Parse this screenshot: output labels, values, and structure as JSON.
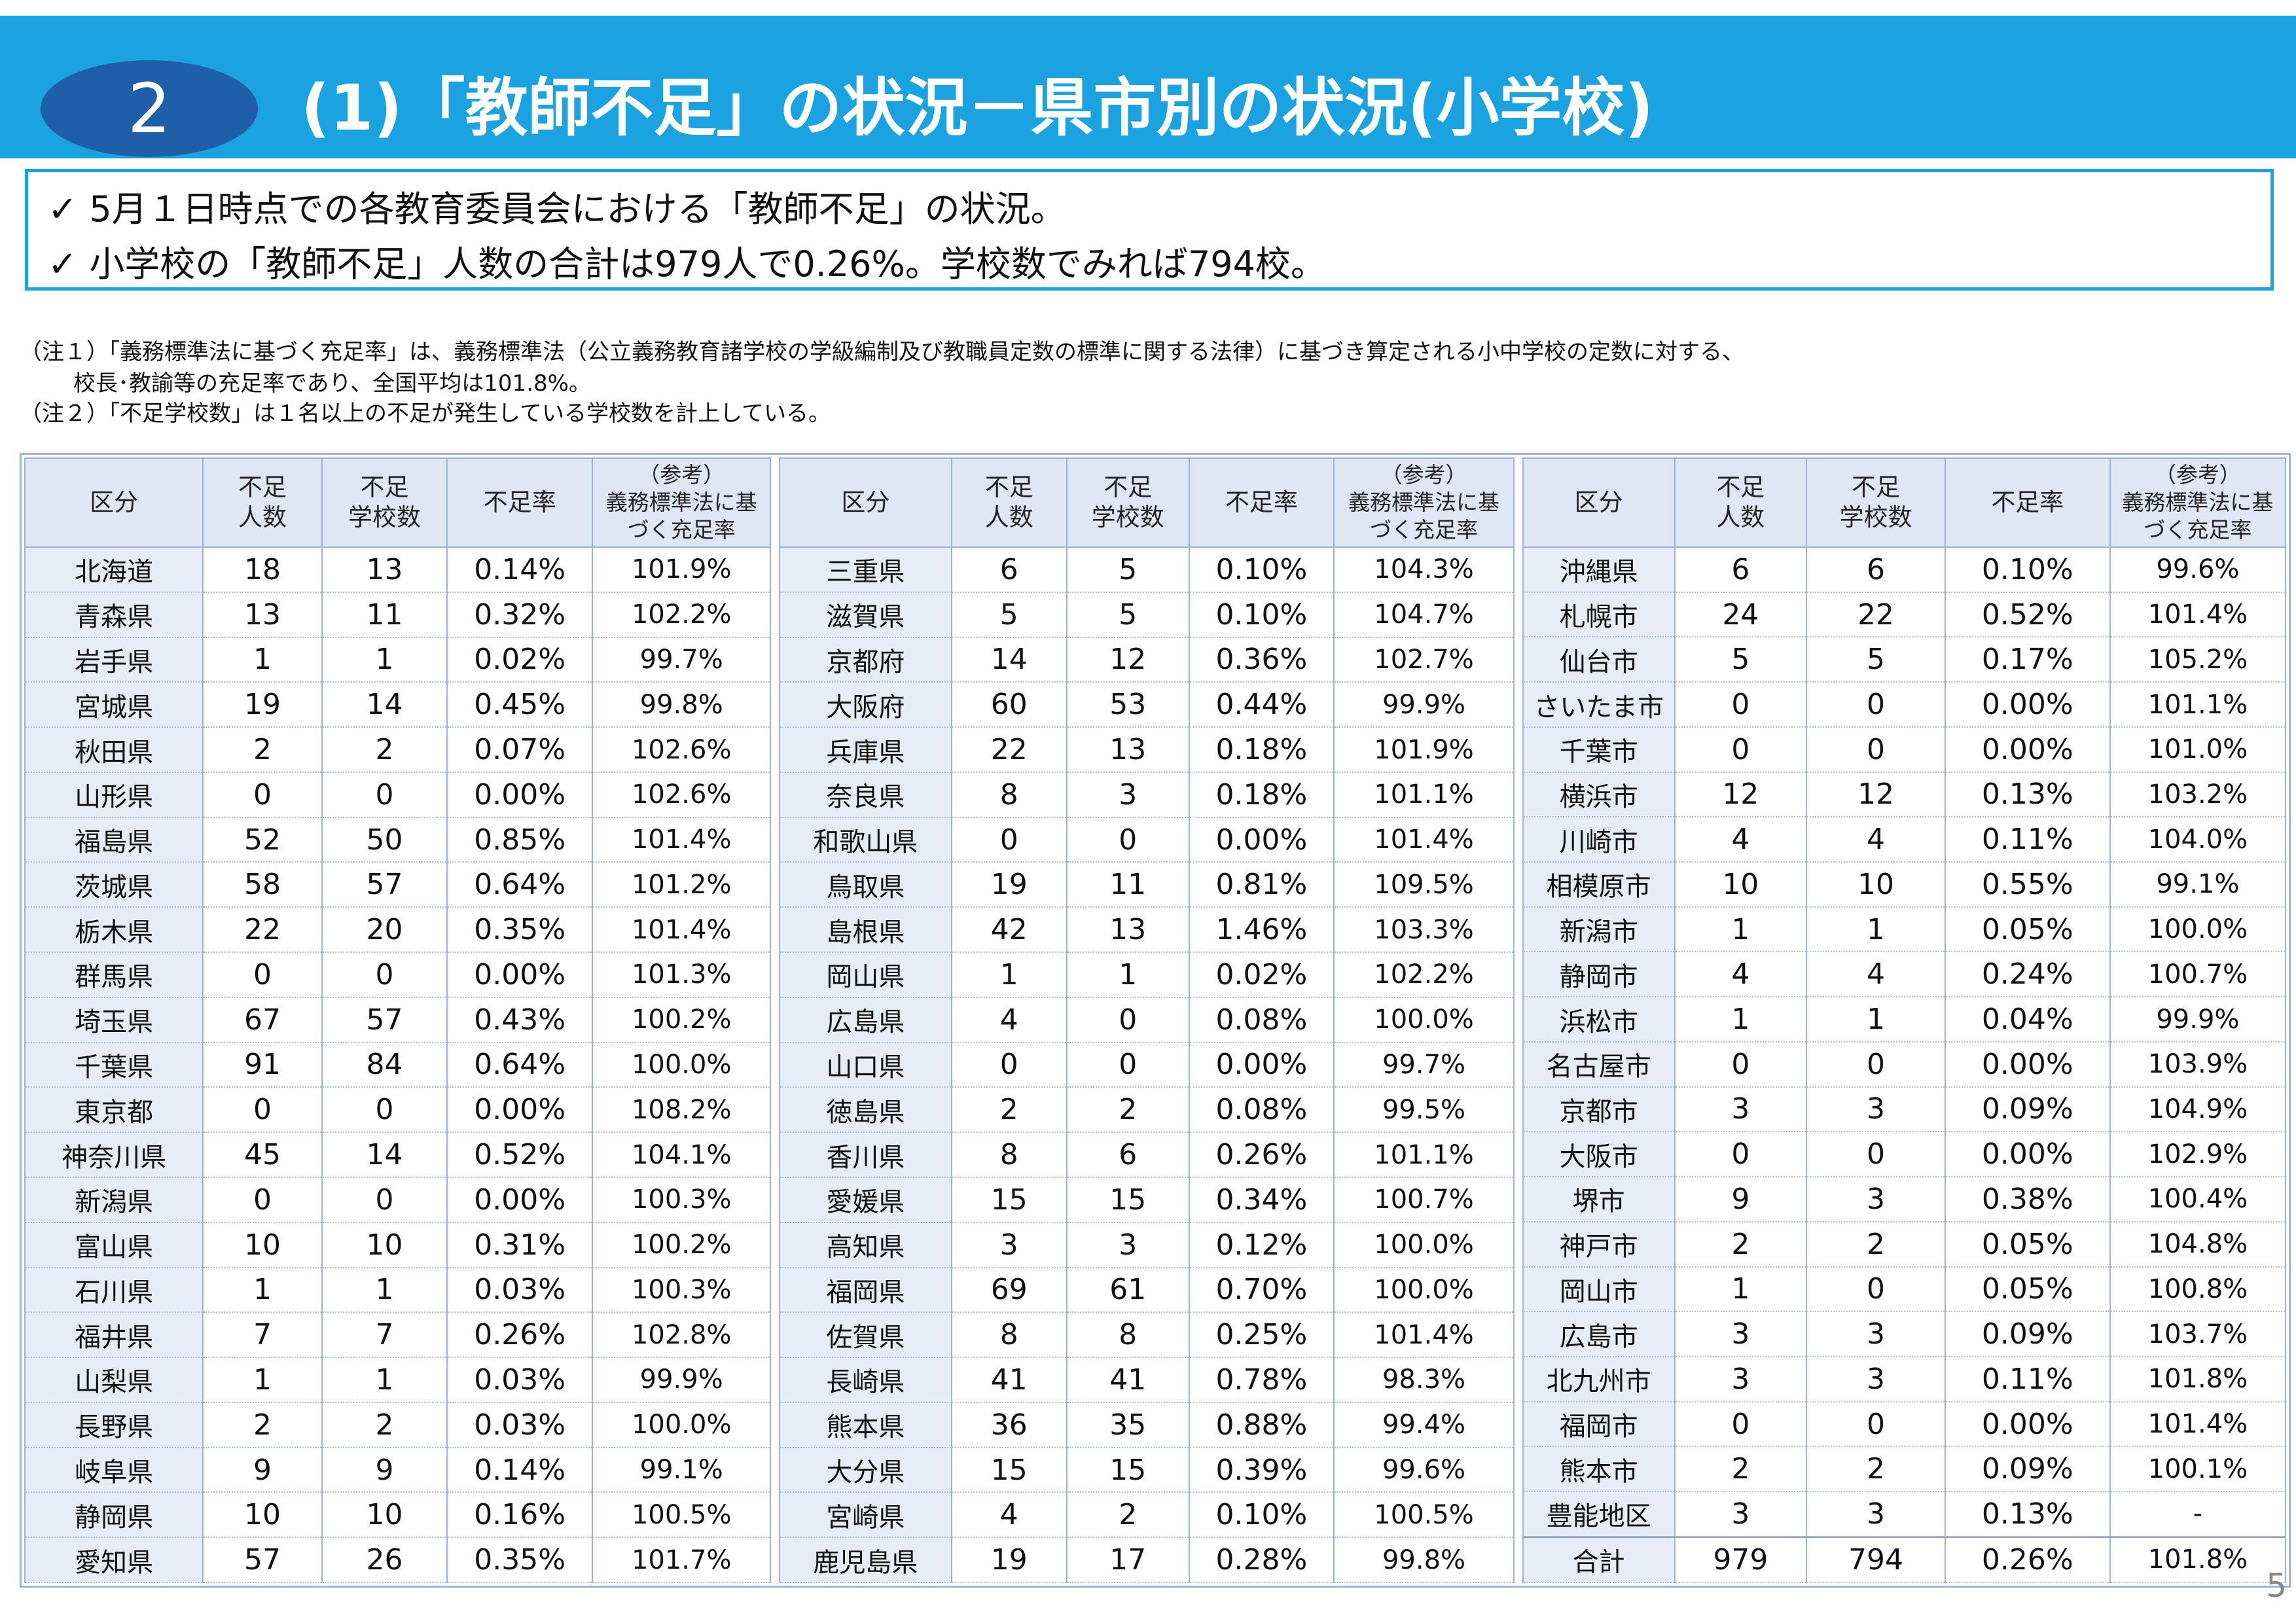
{
  "header": {
    "section_number": "2",
    "title": "(1)「教師不足」の状況－県市別の状況(小学校)"
  },
  "summary": [
    "5月１日時点での各教育委員会における「教師不足」の状況。",
    "小学校の「教師不足」人数の合計は979人で0.26%。学校数でみれば794校。"
  ],
  "check_symbol": "✓",
  "notes": [
    "（注１）「義務標準法に基づく充足率」は、義務標準法（公立義務教育諸学校の学級編制及び教職員定数の標準に関する法律）に基づき算定される小中学校の定数に対する、",
    "校長･教諭等の充足率であり、全国平均は101.8%。",
    "（注２）「不足学校数」は１名以上の不足が発生している学校数を計上している。"
  ],
  "columns": {
    "category": "区分",
    "shortage_people": [
      "不足",
      "人数"
    ],
    "shortage_schools": [
      "不足",
      "学校数"
    ],
    "shortage_rate": "不足率",
    "reference": [
      "（参考）",
      "義務標準法に基",
      "づく充足率"
    ]
  },
  "tables": [
    [
      [
        "北海道",
        "18",
        "13",
        "0.14%",
        "101.9%"
      ],
      [
        "青森県",
        "13",
        "11",
        "0.32%",
        "102.2%"
      ],
      [
        "岩手県",
        "1",
        "1",
        "0.02%",
        "99.7%"
      ],
      [
        "宮城県",
        "19",
        "14",
        "0.45%",
        "99.8%"
      ],
      [
        "秋田県",
        "2",
        "2",
        "0.07%",
        "102.6%"
      ],
      [
        "山形県",
        "0",
        "0",
        "0.00%",
        "102.6%"
      ],
      [
        "福島県",
        "52",
        "50",
        "0.85%",
        "101.4%"
      ],
      [
        "茨城県",
        "58",
        "57",
        "0.64%",
        "101.2%"
      ],
      [
        "栃木県",
        "22",
        "20",
        "0.35%",
        "101.4%"
      ],
      [
        "群馬県",
        "0",
        "0",
        "0.00%",
        "101.3%"
      ],
      [
        "埼玉県",
        "67",
        "57",
        "0.43%",
        "100.2%"
      ],
      [
        "千葉県",
        "91",
        "84",
        "0.64%",
        "100.0%"
      ],
      [
        "東京都",
        "0",
        "0",
        "0.00%",
        "108.2%"
      ],
      [
        "神奈川県",
        "45",
        "14",
        "0.52%",
        "104.1%"
      ],
      [
        "新潟県",
        "0",
        "0",
        "0.00%",
        "100.3%"
      ],
      [
        "富山県",
        "10",
        "10",
        "0.31%",
        "100.2%"
      ],
      [
        "石川県",
        "1",
        "1",
        "0.03%",
        "100.3%"
      ],
      [
        "福井県",
        "7",
        "7",
        "0.26%",
        "102.8%"
      ],
      [
        "山梨県",
        "1",
        "1",
        "0.03%",
        "99.9%"
      ],
      [
        "長野県",
        "2",
        "2",
        "0.03%",
        "100.0%"
      ],
      [
        "岐阜県",
        "9",
        "9",
        "0.14%",
        "99.1%"
      ],
      [
        "静岡県",
        "10",
        "10",
        "0.16%",
        "100.5%"
      ],
      [
        "愛知県",
        "57",
        "26",
        "0.35%",
        "101.7%"
      ]
    ],
    [
      [
        "三重県",
        "6",
        "5",
        "0.10%",
        "104.3%"
      ],
      [
        "滋賀県",
        "5",
        "5",
        "0.10%",
        "104.7%"
      ],
      [
        "京都府",
        "14",
        "12",
        "0.36%",
        "102.7%"
      ],
      [
        "大阪府",
        "60",
        "53",
        "0.44%",
        "99.9%"
      ],
      [
        "兵庫県",
        "22",
        "13",
        "0.18%",
        "101.9%"
      ],
      [
        "奈良県",
        "8",
        "3",
        "0.18%",
        "101.1%"
      ],
      [
        "和歌山県",
        "0",
        "0",
        "0.00%",
        "101.4%"
      ],
      [
        "鳥取県",
        "19",
        "11",
        "0.81%",
        "109.5%"
      ],
      [
        "島根県",
        "42",
        "13",
        "1.46%",
        "103.3%"
      ],
      [
        "岡山県",
        "1",
        "1",
        "0.02%",
        "102.2%"
      ],
      [
        "広島県",
        "4",
        "0",
        "0.08%",
        "100.0%"
      ],
      [
        "山口県",
        "0",
        "0",
        "0.00%",
        "99.7%"
      ],
      [
        "徳島県",
        "2",
        "2",
        "0.08%",
        "99.5%"
      ],
      [
        "香川県",
        "8",
        "6",
        "0.26%",
        "101.1%"
      ],
      [
        "愛媛県",
        "15",
        "15",
        "0.34%",
        "100.7%"
      ],
      [
        "高知県",
        "3",
        "3",
        "0.12%",
        "100.0%"
      ],
      [
        "福岡県",
        "69",
        "61",
        "0.70%",
        "100.0%"
      ],
      [
        "佐賀県",
        "8",
        "8",
        "0.25%",
        "101.4%"
      ],
      [
        "長崎県",
        "41",
        "41",
        "0.78%",
        "98.3%"
      ],
      [
        "熊本県",
        "36",
        "35",
        "0.88%",
        "99.4%"
      ],
      [
        "大分県",
        "15",
        "15",
        "0.39%",
        "99.6%"
      ],
      [
        "宮崎県",
        "4",
        "2",
        "0.10%",
        "100.5%"
      ],
      [
        "鹿児島県",
        "19",
        "17",
        "0.28%",
        "99.8%"
      ]
    ],
    [
      [
        "沖縄県",
        "6",
        "6",
        "0.10%",
        "99.6%"
      ],
      [
        "札幌市",
        "24",
        "22",
        "0.52%",
        "101.4%"
      ],
      [
        "仙台市",
        "5",
        "5",
        "0.17%",
        "105.2%"
      ],
      [
        "さいたま市",
        "0",
        "0",
        "0.00%",
        "101.1%"
      ],
      [
        "千葉市",
        "0",
        "0",
        "0.00%",
        "101.0%"
      ],
      [
        "横浜市",
        "12",
        "12",
        "0.13%",
        "103.2%"
      ],
      [
        "川崎市",
        "4",
        "4",
        "0.11%",
        "104.0%"
      ],
      [
        "相模原市",
        "10",
        "10",
        "0.55%",
        "99.1%"
      ],
      [
        "新潟市",
        "1",
        "1",
        "0.05%",
        "100.0%"
      ],
      [
        "静岡市",
        "4",
        "4",
        "0.24%",
        "100.7%"
      ],
      [
        "浜松市",
        "1",
        "1",
        "0.04%",
        "99.9%"
      ],
      [
        "名古屋市",
        "0",
        "0",
        "0.00%",
        "103.9%"
      ],
      [
        "京都市",
        "3",
        "3",
        "0.09%",
        "104.9%"
      ],
      [
        "大阪市",
        "0",
        "0",
        "0.00%",
        "102.9%"
      ],
      [
        "堺市",
        "9",
        "3",
        "0.38%",
        "100.4%"
      ],
      [
        "神戸市",
        "2",
        "2",
        "0.05%",
        "104.8%"
      ],
      [
        "岡山市",
        "1",
        "0",
        "0.05%",
        "100.8%"
      ],
      [
        "広島市",
        "3",
        "3",
        "0.09%",
        "103.7%"
      ],
      [
        "北九州市",
        "3",
        "3",
        "0.11%",
        "101.8%"
      ],
      [
        "福岡市",
        "0",
        "0",
        "0.00%",
        "101.4%"
      ],
      [
        "熊本市",
        "2",
        "2",
        "0.09%",
        "100.1%"
      ],
      [
        "豊能地区",
        "3",
        "3",
        "0.13%",
        "-"
      ],
      [
        "合計",
        "979",
        "794",
        "0.26%",
        "101.8%"
      ]
    ]
  ],
  "page_number": "5"
}
